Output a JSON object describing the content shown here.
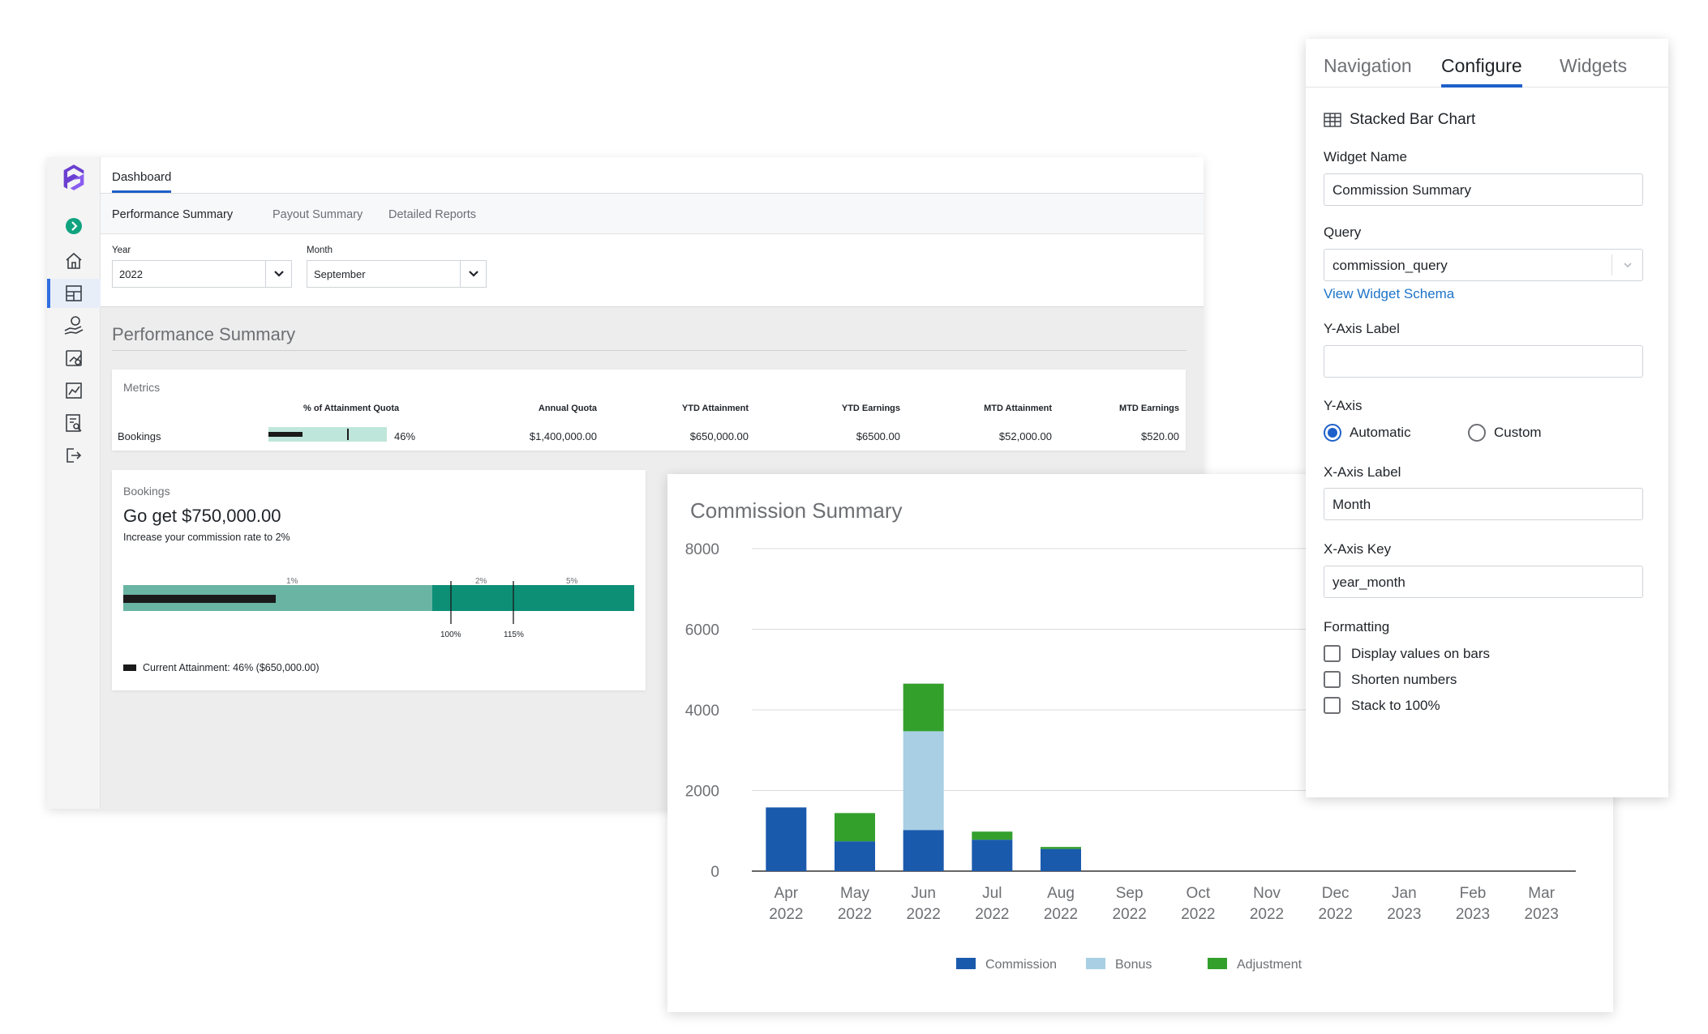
{
  "dashboard": {
    "nav_tab": "Dashboard",
    "subtabs": [
      "Performance Summary",
      "Payout Summary",
      "Detailed Reports"
    ],
    "filters": {
      "year_label": "Year",
      "year_value": "2022",
      "month_label": "Month",
      "month_value": "September"
    },
    "section_title": "Performance Summary",
    "metrics": {
      "title": "Metrics",
      "headers": [
        "% of Attainment Quota",
        "Annual Quota",
        "YTD Attainment",
        "YTD Earnings",
        "MTD Attainment",
        "MTD Earnings"
      ],
      "row": {
        "label": "Bookings",
        "attainment_percent_text": "46%",
        "attainment_fraction": 0.46,
        "annual_quota": "$1,400,000.00",
        "ytd_attainment": "$650,000.00",
        "ytd_earnings": "$6500.00",
        "mtd_attainment": "$52,000.00",
        "mtd_earnings": "$520.00"
      }
    },
    "bookings_card": {
      "title": "Bookings",
      "goal": "Go get $750,000.00",
      "subtitle": "Increase your commission rate to 2%",
      "tier_labels": [
        "1%",
        "2%",
        "5%"
      ],
      "threshold_labels": [
        "100%",
        "115%"
      ],
      "legend": "Current Attainment: 46% ($650,000.00)",
      "colors": {
        "tier1": "#6ab4a4",
        "tier3": "#0d8f76",
        "attainment": "#1a1a1a"
      }
    }
  },
  "chart_data": {
    "type": "bar",
    "stacked": true,
    "title": "Commission Summary",
    "xlabel": "",
    "ylabel": "",
    "ylim": [
      0,
      8000
    ],
    "yticks": [
      "0",
      "2000",
      "4000",
      "6000",
      "8000"
    ],
    "categories": [
      "Apr 2022",
      "May 2022",
      "Jun 2022",
      "Jul 2022",
      "Aug 2022",
      "Sep 2022",
      "Oct 2022",
      "Nov 2022",
      "Dec 2022",
      "Jan 2023",
      "Feb 2023",
      "Mar 2023"
    ],
    "series": [
      {
        "name": "Commission",
        "color": "#1a5aad",
        "values": [
          1580,
          740,
          1020,
          780,
          550,
          0,
          0,
          0,
          0,
          0,
          0,
          0
        ]
      },
      {
        "name": "Bonus",
        "color": "#a8cfe3",
        "values": [
          0,
          0,
          2450,
          0,
          0,
          0,
          0,
          0,
          0,
          0,
          0,
          0
        ]
      },
      {
        "name": "Adjustment",
        "color": "#33a02c",
        "values": [
          0,
          700,
          1180,
          200,
          50,
          0,
          0,
          0,
          0,
          0,
          0,
          0
        ]
      }
    ],
    "grid": true,
    "legend": "bottom"
  },
  "panel": {
    "tabs": [
      "Navigation",
      "Configure",
      "Widgets"
    ],
    "widget_type": "Stacked Bar Chart",
    "widget_name_label": "Widget Name",
    "widget_name_value": "Commission Summary",
    "query_label": "Query",
    "query_value": "commission_query",
    "schema_link": "View Widget Schema",
    "y_axis_label_label": "Y-Axis Label",
    "y_axis_label_value": "",
    "y_axis_label": "Y-Axis",
    "y_axis_options": [
      "Automatic",
      "Custom"
    ],
    "x_axis_label_label": "X-Axis Label",
    "x_axis_label_value": "Month",
    "x_axis_key_label": "X-Axis Key",
    "x_axis_key_value": "year_month",
    "formatting_label": "Formatting",
    "formatting_options": [
      "Display values on bars",
      "Shorten numbers",
      "Stack to 100%"
    ],
    "accent": "#1e60c9"
  }
}
